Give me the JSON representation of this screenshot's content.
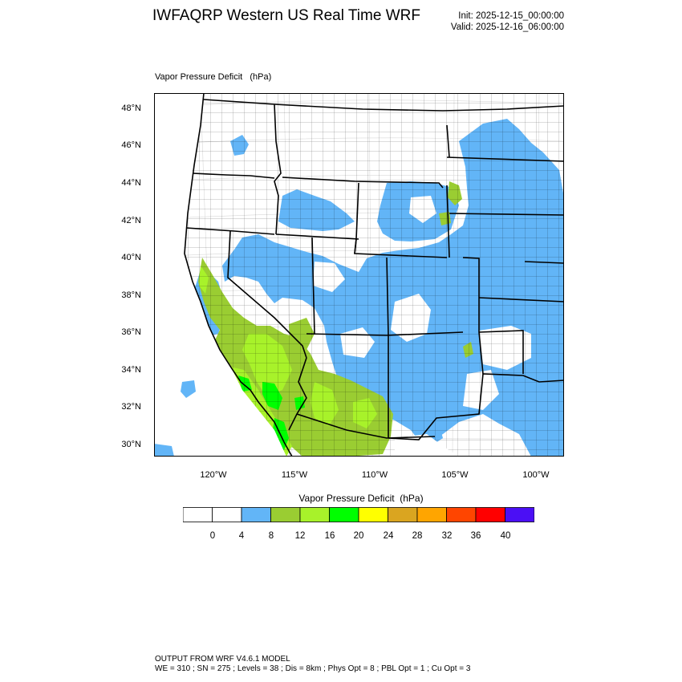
{
  "header": {
    "title": "IWFAQRP Western US Real Time WRF",
    "init": "Init: 2025-12-15_00:00:00",
    "valid": "Valid: 2025-12-16_06:00:00"
  },
  "map": {
    "subtitle": "Vapor Pressure Deficit   (hPa)",
    "lat_labels": [
      "48°N",
      "46°N",
      "44°N",
      "42°N",
      "40°N",
      "38°N",
      "36°N",
      "34°N",
      "32°N",
      "30°N"
    ],
    "lon_labels": [
      "120°W",
      "115°W",
      "110°W",
      "105°W",
      "100°W"
    ],
    "colors": {
      "lt4": "#ffffff",
      "b4_8": "#62b5f7",
      "b8_12": "#9acd32",
      "b12_16": "#a8f22a",
      "b16_20": "#00ff00",
      "border": "#000000"
    }
  },
  "colorbar": {
    "title": "Vapor Pressure Deficit  (hPa)",
    "labels": [
      "0",
      "4",
      "8",
      "12",
      "16",
      "20",
      "24",
      "28",
      "32",
      "36",
      "40"
    ],
    "colors": [
      "#ffffff",
      "#ffffff",
      "#62b5f7",
      "#9acd32",
      "#a8f22a",
      "#00ff00",
      "#ffff00",
      "#daa520",
      "#ffa500",
      "#ff4500",
      "#ff0000",
      "#4b0ff5"
    ]
  },
  "footer": {
    "line1": "OUTPUT FROM WRF V4.6.1 MODEL",
    "line2": "WE = 310 ; SN = 275 ; Levels = 38 ; Dis = 8km ; Phys Opt = 8 ; PBL Opt = 1 ; Cu Opt = 3"
  }
}
